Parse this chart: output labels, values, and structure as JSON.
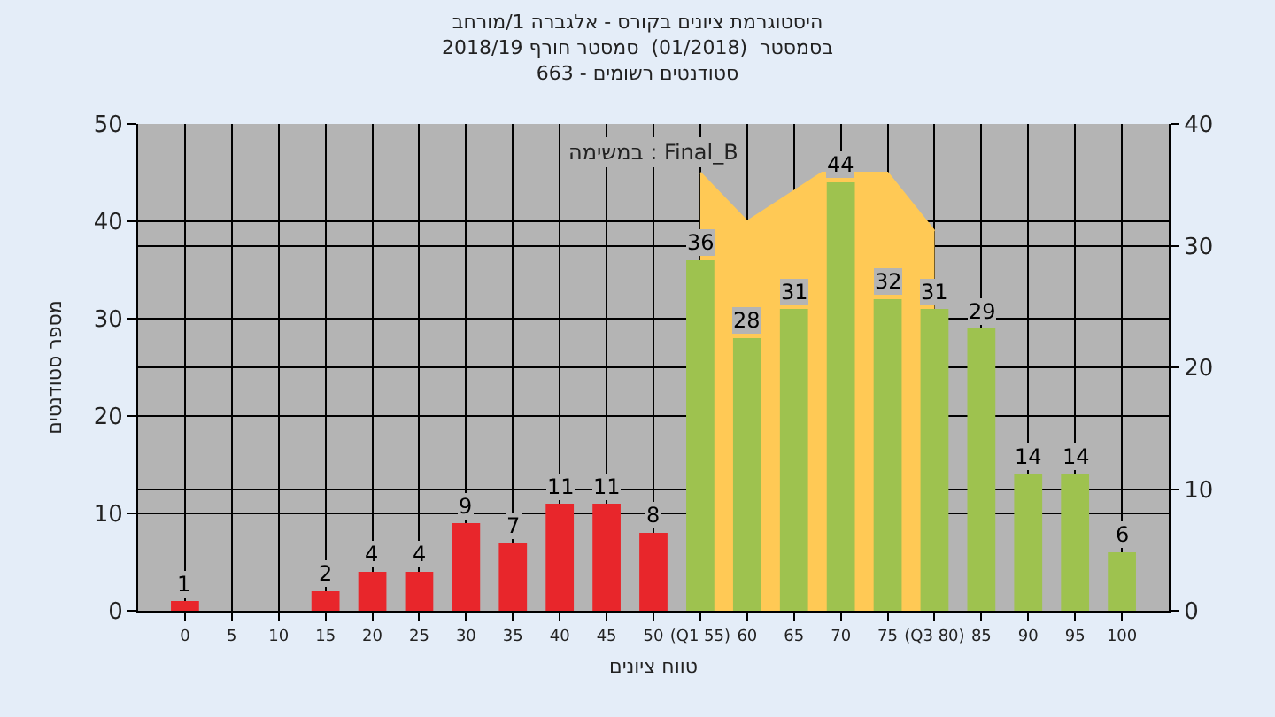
{
  "chart_data": {
    "type": "bar",
    "title": "היסטוגרמת ציונים בקורס - אלגברה 1/מורחב",
    "subtitle": "בסמסטר  (01/2018)  סמסטר חורף 2018/19\nסטודנטים רשומים - 663",
    "xlabel": "טווח ציונים",
    "ylabel": "מספר סטודנטים",
    "annotations": [
      "במשימה : Final_B"
    ],
    "x": [
      0,
      5,
      10,
      15,
      20,
      25,
      30,
      35,
      40,
      45,
      50,
      55,
      60,
      65,
      70,
      75,
      80,
      85,
      90,
      95,
      100
    ],
    "series": [
      {
        "type": "area",
        "color": "#ffc955",
        "x": [
          55,
          60,
          68,
          75,
          80
        ],
        "values": [
          45,
          40,
          45,
          45,
          39
        ]
      },
      {
        "values": [
          1,
          null,
          null,
          2,
          4,
          4,
          9,
          7,
          11,
          11,
          8,
          36,
          28,
          31,
          44,
          32,
          31,
          29,
          14,
          14,
          6
        ],
        "value_labels": [
          "1",
          null,
          null,
          "2",
          "4",
          "4",
          "9",
          "7",
          "11",
          "11",
          "8",
          "36",
          "28",
          "31",
          "44",
          "32",
          "31",
          "29",
          "14",
          "14",
          "6"
        ],
        "colors": [
          "#e8262b",
          "#e8262b",
          "#e8262b",
          "#e8262b",
          "#e8262b",
          "#e8262b",
          "#e8262b",
          "#e8262b",
          "#e8262b",
          "#e8262b",
          "#e8262b",
          "#9ec24f",
          "#9ec24f",
          "#9ec24f",
          "#9ec24f",
          "#9ec24f",
          "#9ec24f",
          "#9ec24f",
          "#9ec24f",
          "#9ec24f",
          "#9ec24f"
        ]
      }
    ],
    "xlim": [
      -5,
      105
    ],
    "xticks": [
      0,
      5,
      10,
      15,
      20,
      25,
      30,
      35,
      40,
      45,
      50,
      {
        "value": 55,
        "label": "(Q1 55)"
      },
      60,
      65,
      70,
      75,
      {
        "value": 80,
        "label": "(Q3 80)"
      },
      85,
      90,
      95,
      100
    ],
    "ylim": [
      0,
      50
    ],
    "yticks": [
      0,
      10,
      20,
      30,
      40,
      50
    ],
    "y2lim": [
      0,
      40
    ],
    "y2ticks": [
      0,
      10,
      20,
      30,
      40
    ],
    "grid": true
  }
}
